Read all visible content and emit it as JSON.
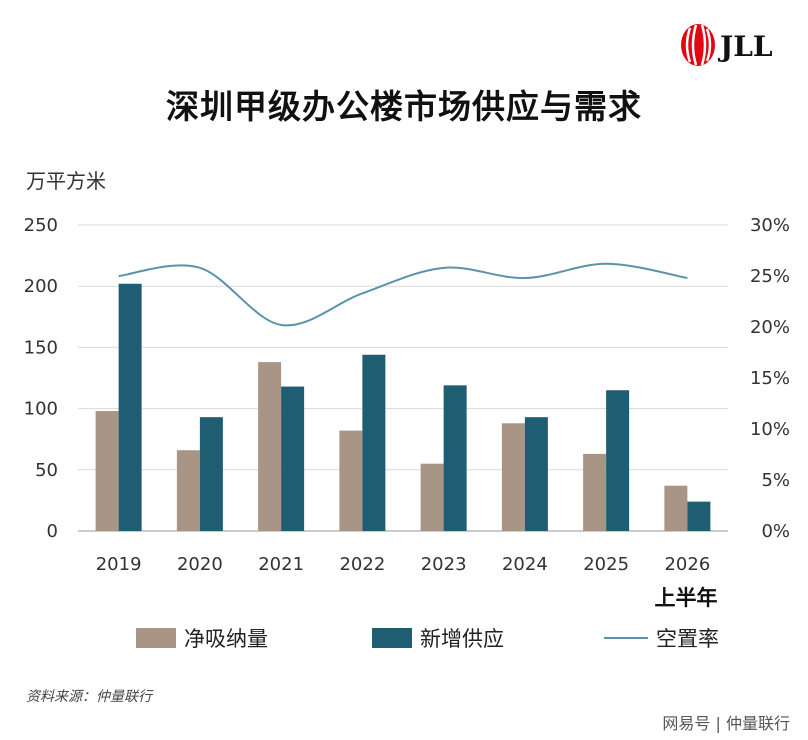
{
  "brand": {
    "logo_text": "JLL"
  },
  "title": "深圳甲级办公楼市场供应与需求",
  "y_unit_label": "万平方米",
  "x_sublabel": "上半年",
  "legend": [
    {
      "label": "净吸纳量"
    },
    {
      "label": "新增供应"
    },
    {
      "label": "空置率"
    }
  ],
  "source": "资料来源：仲量联行",
  "watermark": "网易号 | 仲量联行",
  "colors": {
    "absorption": "#A89585",
    "supply": "#1F5D72",
    "vacancy": "#5A93A9"
  },
  "chart_data": {
    "type": "bar",
    "categories": [
      "2019",
      "2020",
      "2021",
      "2022",
      "2023",
      "2024",
      "2025",
      "2026"
    ],
    "series": [
      {
        "name": "净吸纳量",
        "type": "bar",
        "values": [
          98,
          66,
          138,
          82,
          55,
          88,
          63,
          37
        ]
      },
      {
        "name": "新增供应",
        "type": "bar",
        "values": [
          202,
          93,
          118,
          144,
          119,
          93,
          115,
          24
        ]
      },
      {
        "name": "空置率",
        "type": "line",
        "axis": "right",
        "values": [
          25.0,
          25.8,
          20.2,
          23.3,
          25.8,
          24.8,
          26.2,
          24.8
        ]
      }
    ],
    "ylim": [
      0,
      250
    ],
    "yticks": [
      "0",
      "50",
      "100",
      "150",
      "200",
      "250"
    ],
    "y2lim": [
      0,
      30
    ],
    "y2ticks": [
      "0%",
      "5%",
      "10%",
      "15%",
      "20%",
      "25%",
      "30%"
    ],
    "ylabel": "万平方米",
    "grid": true,
    "legend_position": "bottom"
  }
}
